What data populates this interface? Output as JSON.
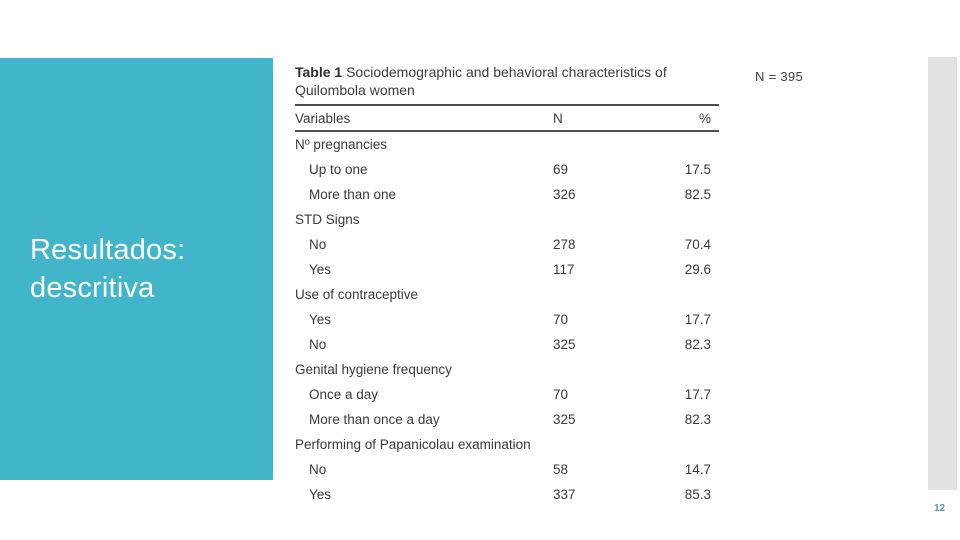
{
  "colors": {
    "accent_teal": "#41b6cb",
    "right_bar_gray": "#e2e2e2",
    "table_text": "#3a3a3a",
    "page_number_teal": "#4c9aad",
    "rule_dark_gray": "#4e4e4e"
  },
  "slide": {
    "section_title_line1": "Resultados:",
    "section_title_line2": "descritiva",
    "sample_size_note": "N = 395",
    "page_number": "12"
  },
  "table": {
    "title_label": "Table 1",
    "title_text": " Sociodemographic and behavioral characteristics of Quilombola women",
    "columns": {
      "variables": "Variables",
      "n": "N",
      "percent": "%"
    },
    "rows": [
      {
        "label": "Nº pregnancies",
        "n": "",
        "percent": "",
        "group": true
      },
      {
        "label": "Up to one",
        "n": "69",
        "percent": "17.5",
        "group": false
      },
      {
        "label": "More than one",
        "n": "326",
        "percent": "82.5",
        "group": false
      },
      {
        "label": "STD Signs",
        "n": "",
        "percent": "",
        "group": true
      },
      {
        "label": "No",
        "n": "278",
        "percent": "70.4",
        "group": false
      },
      {
        "label": "Yes",
        "n": "117",
        "percent": "29.6",
        "group": false
      },
      {
        "label": "Use of contraceptive",
        "n": "",
        "percent": "",
        "group": true
      },
      {
        "label": "Yes",
        "n": "70",
        "percent": "17.7",
        "group": false
      },
      {
        "label": "No",
        "n": "325",
        "percent": "82.3",
        "group": false
      },
      {
        "label": "Genital hygiene frequency",
        "n": "",
        "percent": "",
        "group": true
      },
      {
        "label": "Once a day",
        "n": "70",
        "percent": "17.7",
        "group": false
      },
      {
        "label": "More than once a day",
        "n": "325",
        "percent": "82.3",
        "group": false
      },
      {
        "label": "Performing of Papanicolau examination",
        "n": "",
        "percent": "",
        "group": true
      },
      {
        "label": "No",
        "n": "58",
        "percent": "14.7",
        "group": false
      },
      {
        "label": "Yes",
        "n": "337",
        "percent": "85.3",
        "group": false
      }
    ]
  }
}
